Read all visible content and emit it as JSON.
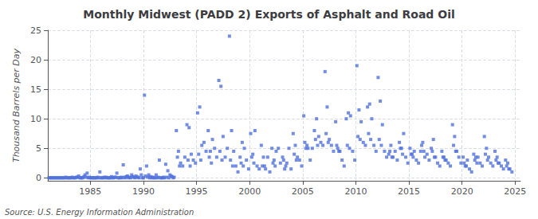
{
  "chart_data": {
    "type": "scatter",
    "title": "Monthly Midwest (PADD 2) Exports of Asphalt and Road Oil",
    "ylabel": "Thousand Barrels per Day",
    "source": "Source: U.S. Energy Information Administration",
    "marker": "square",
    "grid": true,
    "xlim": [
      1981.0,
      2025.5
    ],
    "xticks": [
      1985,
      1990,
      1995,
      2000,
      2005,
      2010,
      2015,
      2020,
      2025
    ],
    "ylim": [
      -0.5,
      25
    ],
    "yticks": [
      0,
      5,
      10,
      15,
      20,
      25
    ],
    "x": [
      1981.3,
      1981.5,
      1981.7,
      1981.9,
      1982.1,
      1982.3,
      1982.5,
      1982.7,
      1982.9,
      1983.1,
      1983.3,
      1983.5,
      1983.7,
      1983.9,
      1984.1,
      1984.3,
      1984.5,
      1984.7,
      1984.9,
      1985.1,
      1985.3,
      1985.5,
      1985.7,
      1985.9,
      1986.1,
      1986.3,
      1986.5,
      1986.7,
      1986.9,
      1987.1,
      1987.3,
      1987.5,
      1987.7,
      1987.9,
      1988.1,
      1988.3,
      1988.5,
      1988.7,
      1988.9,
      1989.1,
      1989.3,
      1989.5,
      1989.7,
      1989.9,
      1990.1,
      1990.3,
      1990.5,
      1990.7,
      1990.9,
      1991.1,
      1991.3,
      1991.5,
      1991.7,
      1991.9,
      1992.1,
      1992.3,
      1992.5,
      1992.7,
      1992.9,
      1993.1,
      1993.3,
      1993.5,
      1993.7,
      1993.9,
      1994.1,
      1994.3,
      1994.5,
      1994.7,
      1994.9,
      1995.1,
      1995.3,
      1995.5,
      1995.7,
      1995.9,
      1996.1,
      1996.3,
      1996.5,
      1996.7,
      1996.9,
      1997.1,
      1997.3,
      1997.5,
      1997.7,
      1997.9,
      1998.1,
      1998.3,
      1998.5,
      1998.7,
      1998.9,
      1999.1,
      1999.3,
      1999.5,
      1999.7,
      1999.9,
      2000.1,
      2000.3,
      2000.5,
      2000.7,
      2000.9,
      2001.1,
      2001.3,
      2001.5,
      2001.7,
      2001.9,
      2002.1,
      2002.3,
      2002.5,
      2002.7,
      2002.9,
      2003.1,
      2003.3,
      2003.5,
      2003.7,
      2003.9,
      2004.1,
      2004.3,
      2004.5,
      2004.7,
      2004.9,
      2005.1,
      2005.3,
      2005.5,
      2005.7,
      2005.9,
      2006.1,
      2006.3,
      2006.5,
      2006.7,
      2006.9,
      2007.1,
      2007.3,
      2007.5,
      2007.7,
      2007.9,
      2008.1,
      2008.3,
      2008.5,
      2008.7,
      2008.9,
      2009.1,
      2009.3,
      2009.5,
      2009.7,
      2009.9,
      2010.1,
      2010.3,
      2010.5,
      2010.7,
      2010.9,
      2011.1,
      2011.3,
      2011.5,
      2011.7,
      2011.9,
      2012.1,
      2012.3,
      2012.5,
      2012.7,
      2012.9,
      2013.1,
      2013.3,
      2013.5,
      2013.7,
      2013.9,
      2014.1,
      2014.3,
      2014.5,
      2014.7,
      2014.9,
      2015.1,
      2015.3,
      2015.5,
      2015.7,
      2015.9,
      2016.1,
      2016.3,
      2016.5,
      2016.7,
      2016.9,
      2017.1,
      2017.3,
      2017.5,
      2017.7,
      2017.9,
      2018.1,
      2018.3,
      2018.5,
      2018.7,
      2018.9,
      2019.1,
      2019.3,
      2019.5,
      2019.7,
      2019.9,
      2020.1,
      2020.3,
      2020.5,
      2020.7,
      2020.9,
      2021.1,
      2021.3,
      2021.5,
      2021.7,
      2021.9,
      2022.1,
      2022.3,
      2022.5,
      2022.7,
      2022.9,
      2023.1,
      2023.3,
      2023.5,
      2023.7,
      2023.9,
      2024.1,
      2024.3,
      2024.5,
      2024.7,
      1993.2,
      1993.4,
      1994.2,
      1994.4,
      1995.2,
      1995.4,
      1996.2,
      1996.4,
      1997.2,
      1997.4,
      1998.2,
      1998.4,
      1999.2,
      1999.4,
      2000.2,
      2000.4,
      2001.2,
      2001.4,
      2002.2,
      2002.4,
      2003.2,
      2003.4,
      2004.2,
      2004.4,
      2005.2,
      2005.4,
      2006.2,
      2006.4,
      2007.2,
      2007.4,
      2008.2,
      2008.4,
      2009.2,
      2009.4,
      2010.2,
      2010.4,
      2011.2,
      2011.4,
      2012.2,
      2012.4,
      2013.2,
      2013.4,
      2014.2,
      2014.4,
      2015.2,
      2015.4,
      2016.2,
      2016.4,
      2017.2,
      2017.4,
      2018.2,
      2018.4,
      2019.2,
      2019.4,
      2020.2,
      2020.4,
      2021.2,
      2021.4,
      2022.2,
      2022.4,
      2023.2,
      2023.4,
      2024.2,
      2024.4,
      1981.1,
      1981.2,
      1981.4,
      1981.6,
      1981.8,
      1982.0,
      1982.2,
      1982.4,
      1982.6,
      1982.8,
      1983.0,
      1983.2,
      1983.4,
      1983.6,
      1983.8,
      1984.0,
      1984.2,
      1984.4,
      1984.6,
      1984.8,
      1985.0,
      1985.2,
      1985.4,
      1985.6,
      1985.8,
      1986.0,
      1986.2,
      1986.4,
      1986.6,
      1986.8,
      1987.0,
      1987.2,
      1987.4,
      1987.6,
      1987.8,
      1988.0,
      1988.2,
      1988.4,
      1988.6,
      1988.8,
      1989.0,
      1989.2,
      1989.4,
      1989.6,
      1989.8,
      1990.0,
      1990.2,
      1990.4,
      1990.6,
      1990.8,
      1991.0,
      1991.2,
      1991.4,
      1991.6,
      1991.8,
      1992.0,
      1992.2,
      1992.4,
      1992.6,
      1992.8
    ],
    "values": [
      0.0,
      0.0,
      0.0,
      0.0,
      0.0,
      0.0,
      0.0,
      0.1,
      0.0,
      0.0,
      0.1,
      0.0,
      0.1,
      0.3,
      0.0,
      0.0,
      0.5,
      0.8,
      0.1,
      0.0,
      0.0,
      0.0,
      0.1,
      1.0,
      0.0,
      0.1,
      0.1,
      0.0,
      0.0,
      0.0,
      0.1,
      0.8,
      0.0,
      0.1,
      2.2,
      0.0,
      0.3,
      0.1,
      0.5,
      0.1,
      0.3,
      0.1,
      1.5,
      0.0,
      14.0,
      2.0,
      0.5,
      0.2,
      0.1,
      0.0,
      0.0,
      3.0,
      0.0,
      0.1,
      2.3,
      1.2,
      0.5,
      0.2,
      0.1,
      8.0,
      4.5,
      2.5,
      2.0,
      3.5,
      9.0,
      8.5,
      4.0,
      3.0,
      2.5,
      11.0,
      12.0,
      5.5,
      6.0,
      4.5,
      8.0,
      4.5,
      6.5,
      5.0,
      3.5,
      16.5,
      15.5,
      7.0,
      3.5,
      5.0,
      24.0,
      8.0,
      4.5,
      2.0,
      1.0,
      3.5,
      6.0,
      5.0,
      3.0,
      1.5,
      7.5,
      4.0,
      8.0,
      2.0,
      1.5,
      5.5,
      3.5,
      1.5,
      3.5,
      1.0,
      5.0,
      3.0,
      4.5,
      5.0,
      2.5,
      3.5,
      1.5,
      2.5,
      5.0,
      1.5,
      7.5,
      5.5,
      3.5,
      3.0,
      2.0,
      10.5,
      5.0,
      5.0,
      3.0,
      5.0,
      8.0,
      10.0,
      7.0,
      6.0,
      5.5,
      18.0,
      12.0,
      6.5,
      5.5,
      4.5,
      9.5,
      5.0,
      4.5,
      3.0,
      2.0,
      10.0,
      11.0,
      10.5,
      4.5,
      3.0,
      19.0,
      11.5,
      9.5,
      6.0,
      5.5,
      12.0,
      12.5,
      10.0,
      5.5,
      4.5,
      17.0,
      13.0,
      9.0,
      4.5,
      3.5,
      4.0,
      5.5,
      3.5,
      4.5,
      3.0,
      6.0,
      5.0,
      7.5,
      3.5,
      2.5,
      5.0,
      4.0,
      4.5,
      3.0,
      2.5,
      4.5,
      6.0,
      3.5,
      4.0,
      3.0,
      5.0,
      6.5,
      3.5,
      2.5,
      2.0,
      4.5,
      3.5,
      3.0,
      2.5,
      2.0,
      9.0,
      7.0,
      4.5,
      3.5,
      2.5,
      3.5,
      2.0,
      3.0,
      1.5,
      1.0,
      4.0,
      3.5,
      3.5,
      2.5,
      2.0,
      7.0,
      5.0,
      3.5,
      2.5,
      2.0,
      4.5,
      3.5,
      2.5,
      2.0,
      1.5,
      3.0,
      2.5,
      1.5,
      1.0,
      3.5,
      2.0,
      3.0,
      2.0,
      4.0,
      3.0,
      3.5,
      2.5,
      4.5,
      3.0,
      3.0,
      2.0,
      2.5,
      2.0,
      3.5,
      2.5,
      2.0,
      2.0,
      2.5,
      2.0,
      3.0,
      2.0,
      4.0,
      3.0,
      6.0,
      5.5,
      6.5,
      5.5,
      7.5,
      6.0,
      5.5,
      4.5,
      5.5,
      5.0,
      7.0,
      6.5,
      7.5,
      6.5,
      6.5,
      5.5,
      4.5,
      3.5,
      5.0,
      4.0,
      4.0,
      3.5,
      5.5,
      4.5,
      4.5,
      3.5,
      3.5,
      3.0,
      5.5,
      4.5,
      2.5,
      2.0,
      3.0,
      2.5,
      4.0,
      3.0,
      3.0,
      2.5,
      2.0,
      1.5,
      0.0,
      0.0,
      0.0,
      0.0,
      0.0,
      0.0,
      0.0,
      0.0,
      0.0,
      0.0,
      0.0,
      0.0,
      0.0,
      0.0,
      0.1,
      0.0,
      0.0,
      0.2,
      0.1,
      0.0,
      0.0,
      0.0,
      0.0,
      0.0,
      0.0,
      0.0,
      0.0,
      0.0,
      0.0,
      0.0,
      0.2,
      0.0,
      0.1,
      0.0,
      0.0,
      0.0,
      0.1,
      0.2,
      0.0,
      0.0,
      0.2,
      0.0,
      0.1,
      0.0,
      0.5,
      0.0,
      0.3,
      0.1,
      0.0,
      0.0,
      0.0,
      0.5,
      0.1,
      0.0,
      0.0,
      0.0,
      0.1,
      0.0,
      0.3,
      0.0
    ]
  }
}
